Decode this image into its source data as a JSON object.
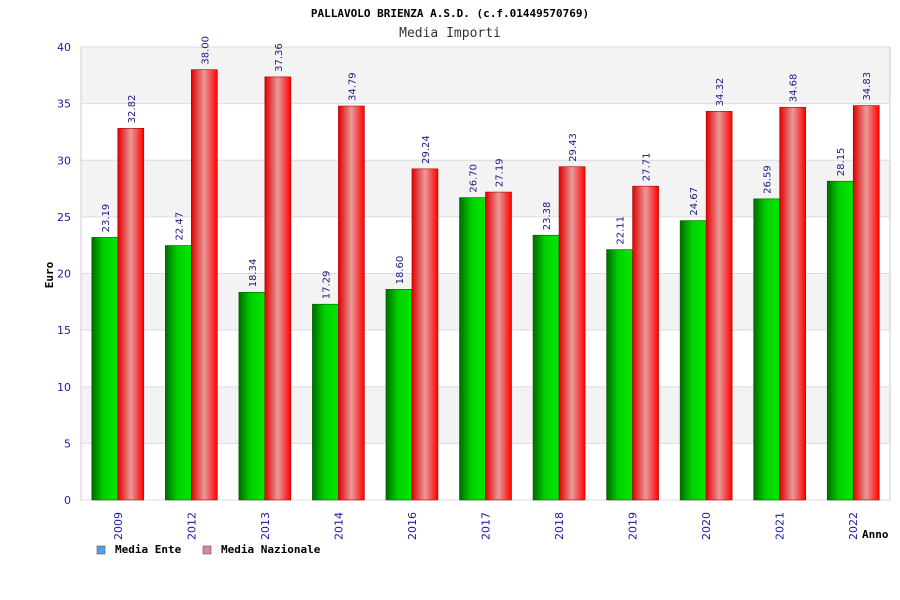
{
  "chart_data": {
    "type": "bar",
    "title": "PALLAVOLO BRIENZA A.S.D. (c.f.01449570769)",
    "subtitle": "Media Importi",
    "xlabel": "Anno",
    "ylabel": "Euro",
    "ylim": [
      0,
      40
    ],
    "yticks": [
      0,
      5,
      10,
      15,
      20,
      25,
      30,
      35,
      40
    ],
    "grid": true,
    "legend_position": "bottom-left",
    "categories": [
      "2009",
      "2012",
      "2013",
      "2014",
      "2016",
      "2017",
      "2018",
      "2019",
      "2020",
      "2021",
      "2022"
    ],
    "series": [
      {
        "name": "Media Ente",
        "legend_color": "#5b9bf0",
        "bar_color": "#00c000",
        "values": [
          23.19,
          22.47,
          18.34,
          17.29,
          18.6,
          26.7,
          23.38,
          22.11,
          24.67,
          26.59,
          28.15
        ],
        "labels": [
          "23.19",
          "22.47",
          "18.34",
          "17.29",
          "18.60",
          "26.70",
          "23.38",
          "22.11",
          "24.67",
          "26.59",
          "28.15"
        ]
      },
      {
        "name": "Media Nazionale",
        "legend_color": "#e080b0",
        "bar_color": "#ff0000",
        "values": [
          32.82,
          38.0,
          37.36,
          34.79,
          29.24,
          27.19,
          29.43,
          27.71,
          34.32,
          34.68,
          34.83
        ],
        "labels": [
          "32.82",
          "38.00",
          "37.36",
          "34.79",
          "29.24",
          "27.19",
          "29.43",
          "27.71",
          "34.32",
          "34.68",
          "34.83"
        ]
      }
    ]
  }
}
